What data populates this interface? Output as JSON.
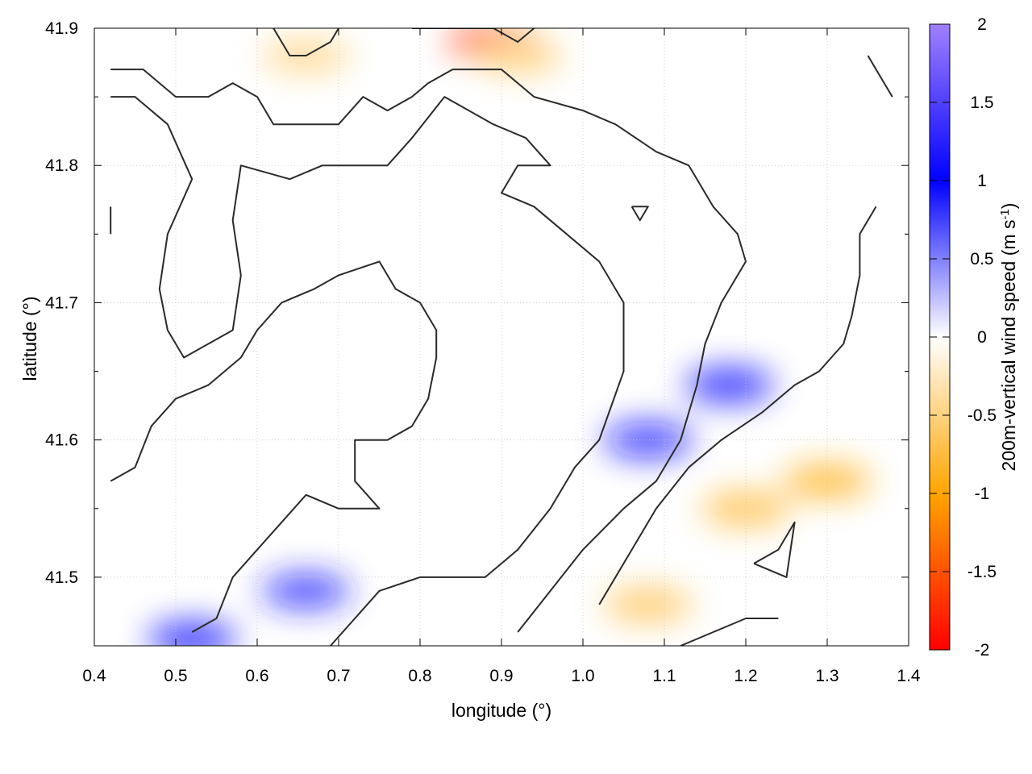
{
  "chart_data": {
    "type": "heatmap",
    "title": "",
    "xlabel": "longitude (°)",
    "ylabel": "latitude (°)",
    "colorbar_label": "200m-vertical wind speed (m s",
    "colorbar_label_sup": "-1",
    "colorbar_label_close": ")",
    "xlim": [
      0.4,
      1.4
    ],
    "ylim": [
      41.45,
      41.9
    ],
    "x_ticks": [
      0.4,
      0.5,
      0.6,
      0.7,
      0.8,
      0.9,
      1.0,
      1.1,
      1.2,
      1.3,
      1.4
    ],
    "x_tick_labels": [
      "0.4",
      "0.5",
      "0.6",
      "0.7",
      "0.8",
      "0.9",
      "1.0",
      "1.1",
      "1.2",
      "1.3",
      "1.4"
    ],
    "y_ticks": [
      41.5,
      41.6,
      41.7,
      41.8,
      41.9
    ],
    "y_tick_labels": [
      "41.5",
      "41.6",
      "41.7",
      "41.8",
      "41.9"
    ],
    "colorbar_range": [
      -2,
      2
    ],
    "colorbar_ticks": [
      2,
      1.5,
      1,
      0.5,
      0,
      -0.5,
      -1,
      -1.5,
      -2
    ],
    "colorbar_tick_labels": [
      "2",
      "1.5",
      "1",
      "0.5",
      "0",
      "-0.5",
      "-1",
      "-1.5",
      "-2"
    ],
    "colorscale": [
      {
        "value": -2,
        "color": "#ff0000"
      },
      {
        "value": -1,
        "color": "#ffa500"
      },
      {
        "value": 0,
        "color": "#ffffff"
      },
      {
        "value": 1,
        "color": "#0000ff"
      },
      {
        "value": 2,
        "color": "#a080ff"
      }
    ],
    "grid": true,
    "regions": [
      {
        "x": 1.08,
        "y": 41.6,
        "value": 1.1
      },
      {
        "x": 1.18,
        "y": 41.64,
        "value": 1.0
      },
      {
        "x": 0.66,
        "y": 41.49,
        "value": 0.9
      },
      {
        "x": 0.52,
        "y": 41.455,
        "value": 1.0
      },
      {
        "x": 0.89,
        "y": 41.89,
        "value": -1.8
      },
      {
        "x": 1.2,
        "y": 41.55,
        "value": -0.8
      },
      {
        "x": 1.08,
        "y": 41.48,
        "value": -0.7
      },
      {
        "x": 1.3,
        "y": 41.57,
        "value": -0.9
      },
      {
        "x": 0.92,
        "y": 41.88,
        "value": -0.6
      },
      {
        "x": 0.66,
        "y": 41.88,
        "value": -0.5
      }
    ],
    "contours": [
      [
        [
          0.42,
          41.85
        ],
        [
          0.45,
          41.85
        ],
        [
          0.49,
          41.83
        ],
        [
          0.52,
          41.79
        ],
        [
          0.49,
          41.75
        ],
        [
          0.48,
          41.71
        ],
        [
          0.49,
          41.68
        ],
        [
          0.51,
          41.66
        ],
        [
          0.54,
          41.67
        ],
        [
          0.57,
          41.68
        ],
        [
          0.58,
          41.72
        ],
        [
          0.57,
          41.76
        ],
        [
          0.58,
          41.8
        ],
        [
          0.64,
          41.79
        ],
        [
          0.68,
          41.8
        ],
        [
          0.76,
          41.8
        ],
        [
          0.79,
          41.82
        ],
        [
          0.83,
          41.85
        ],
        [
          0.89,
          41.83
        ],
        [
          0.93,
          41.82
        ],
        [
          0.96,
          41.8
        ],
        [
          0.92,
          41.8
        ],
        [
          0.9,
          41.78
        ],
        [
          0.94,
          41.77
        ],
        [
          0.98,
          41.75
        ],
        [
          1.02,
          41.73
        ],
        [
          1.05,
          41.7
        ],
        [
          1.05,
          41.65
        ],
        [
          1.02,
          41.6
        ],
        [
          0.99,
          41.58
        ],
        [
          0.96,
          41.55
        ],
        [
          0.92,
          41.52
        ],
        [
          0.88,
          41.5
        ],
        [
          0.8,
          41.5
        ],
        [
          0.75,
          41.49
        ],
        [
          0.72,
          41.47
        ],
        [
          0.69,
          41.45
        ]
      ],
      [
        [
          0.42,
          41.87
        ],
        [
          0.46,
          41.87
        ],
        [
          0.48,
          41.86
        ],
        [
          0.5,
          41.85
        ],
        [
          0.54,
          41.85
        ],
        [
          0.57,
          41.86
        ],
        [
          0.6,
          41.85
        ],
        [
          0.62,
          41.83
        ],
        [
          0.66,
          41.83
        ],
        [
          0.7,
          41.83
        ],
        [
          0.73,
          41.85
        ],
        [
          0.76,
          41.84
        ],
        [
          0.79,
          41.85
        ],
        [
          0.81,
          41.86
        ],
        [
          0.84,
          41.87
        ],
        [
          0.9,
          41.87
        ],
        [
          0.94,
          41.85
        ],
        [
          1.0,
          41.84
        ],
        [
          1.04,
          41.83
        ],
        [
          1.09,
          41.81
        ],
        [
          1.13,
          41.8
        ],
        [
          1.16,
          41.77
        ],
        [
          1.19,
          41.75
        ],
        [
          1.2,
          41.73
        ],
        [
          1.19,
          41.72
        ],
        [
          1.17,
          41.7
        ],
        [
          1.15,
          41.67
        ],
        [
          1.14,
          41.64
        ],
        [
          1.12,
          41.6
        ],
        [
          1.09,
          41.57
        ],
        [
          1.05,
          41.55
        ],
        [
          1.0,
          41.52
        ],
        [
          0.96,
          41.49
        ],
        [
          0.92,
          41.46
        ]
      ],
      [
        [
          0.62,
          41.9
        ],
        [
          0.64,
          41.88
        ],
        [
          0.66,
          41.88
        ],
        [
          0.69,
          41.89
        ],
        [
          0.7,
          41.9
        ]
      ],
      [
        [
          0.79,
          41.9
        ],
        [
          0.81,
          41.9
        ],
        [
          0.86,
          41.9
        ],
        [
          0.89,
          41.9
        ],
        [
          0.92,
          41.89
        ],
        [
          0.94,
          41.9
        ]
      ],
      [
        [
          0.42,
          41.77
        ],
        [
          0.42,
          41.75
        ]
      ],
      [
        [
          1.06,
          41.77
        ],
        [
          1.08,
          41.77
        ],
        [
          1.07,
          41.76
        ],
        [
          1.06,
          41.77
        ]
      ],
      [
        [
          1.02,
          41.48
        ],
        [
          1.05,
          41.51
        ],
        [
          1.09,
          41.55
        ],
        [
          1.13,
          41.58
        ],
        [
          1.17,
          41.6
        ],
        [
          1.22,
          41.62
        ],
        [
          1.26,
          41.64
        ],
        [
          1.29,
          41.65
        ],
        [
          1.32,
          41.67
        ],
        [
          1.33,
          41.69
        ],
        [
          1.34,
          41.72
        ],
        [
          1.34,
          41.75
        ],
        [
          1.36,
          41.77
        ]
      ],
      [
        [
          1.21,
          41.51
        ],
        [
          1.24,
          41.52
        ],
        [
          1.26,
          41.54
        ],
        [
          1.25,
          41.5
        ],
        [
          1.21,
          41.51
        ]
      ],
      [
        [
          1.12,
          41.45
        ],
        [
          1.16,
          41.46
        ],
        [
          1.2,
          41.47
        ],
        [
          1.24,
          41.47
        ]
      ],
      [
        [
          0.42,
          41.57
        ],
        [
          0.45,
          41.58
        ],
        [
          0.47,
          41.61
        ],
        [
          0.5,
          41.63
        ],
        [
          0.54,
          41.64
        ],
        [
          0.58,
          41.66
        ],
        [
          0.6,
          41.68
        ],
        [
          0.63,
          41.7
        ],
        [
          0.67,
          41.71
        ],
        [
          0.7,
          41.72
        ],
        [
          0.75,
          41.73
        ],
        [
          0.77,
          41.71
        ],
        [
          0.8,
          41.7
        ],
        [
          0.82,
          41.68
        ],
        [
          0.82,
          41.66
        ],
        [
          0.81,
          41.63
        ],
        [
          0.79,
          41.61
        ],
        [
          0.76,
          41.6
        ],
        [
          0.72,
          41.6
        ],
        [
          0.72,
          41.57
        ],
        [
          0.75,
          41.55
        ],
        [
          0.7,
          41.55
        ],
        [
          0.66,
          41.56
        ],
        [
          0.63,
          41.54
        ],
        [
          0.6,
          41.52
        ],
        [
          0.57,
          41.5
        ],
        [
          0.55,
          41.47
        ],
        [
          0.52,
          41.46
        ]
      ],
      [
        [
          1.35,
          41.88
        ],
        [
          1.36,
          41.87
        ],
        [
          1.37,
          41.86
        ],
        [
          1.38,
          41.85
        ]
      ],
      [
        [
          0.85,
          41.9
        ],
        [
          0.85,
          41.9
        ]
      ]
    ]
  }
}
